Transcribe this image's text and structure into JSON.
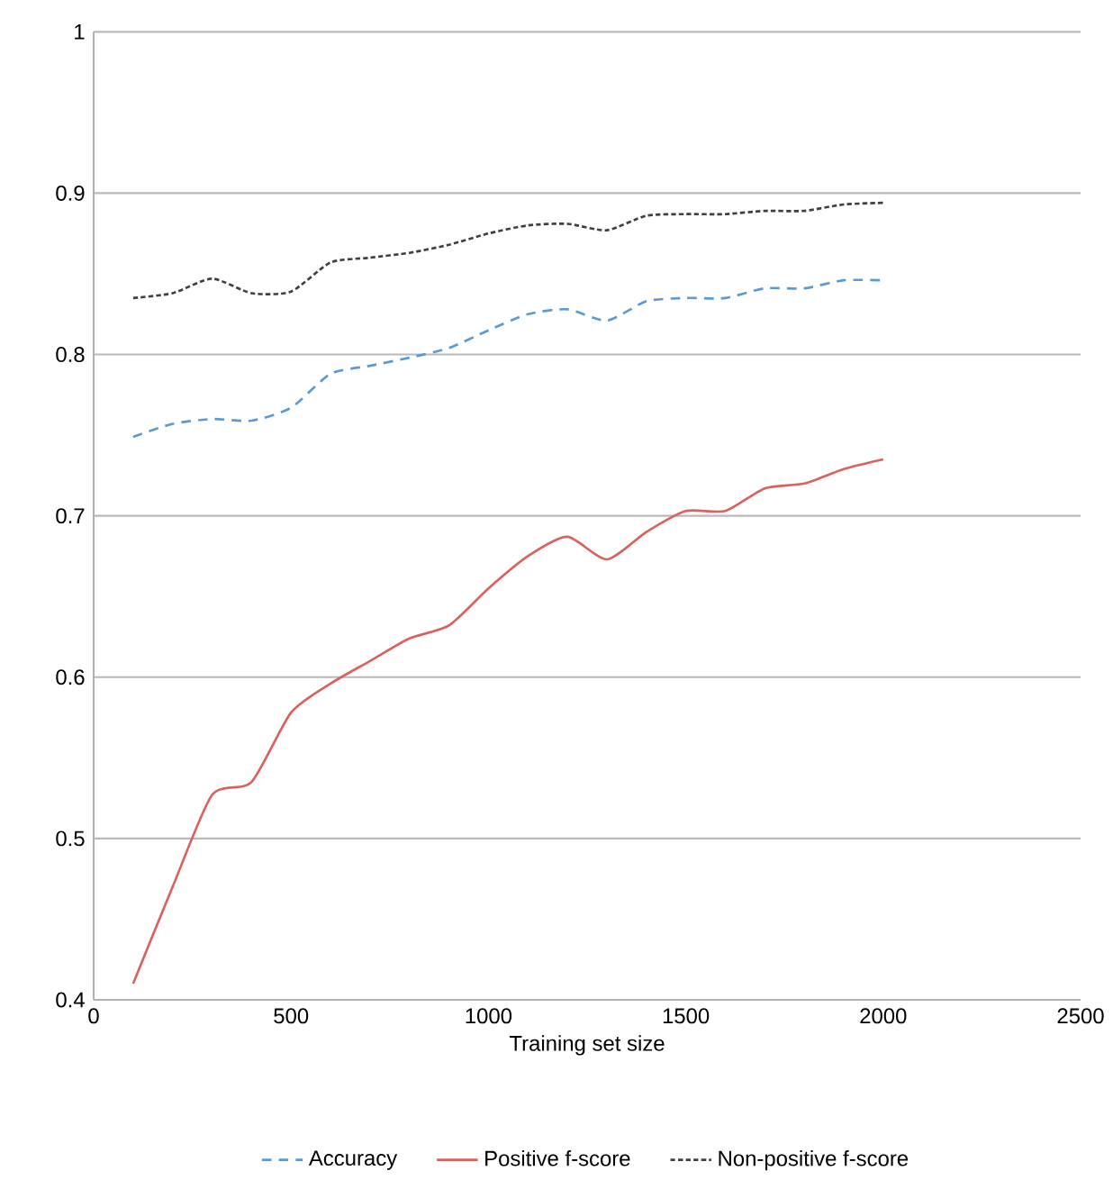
{
  "chart_data": {
    "type": "line",
    "xlabel": "Training set size",
    "x": [
      100,
      200,
      300,
      400,
      500,
      600,
      700,
      800,
      900,
      1000,
      1100,
      1200,
      1300,
      1400,
      1500,
      1600,
      1700,
      1800,
      1900,
      2000
    ],
    "series": [
      {
        "name": "Accuracy",
        "color": "#5b9bd5",
        "line_style": "dashed",
        "values": [
          0.749,
          0.757,
          0.76,
          0.759,
          0.767,
          0.788,
          0.793,
          0.798,
          0.804,
          0.815,
          0.825,
          0.828,
          0.821,
          0.833,
          0.835,
          0.835,
          0.841,
          0.841,
          0.846,
          0.846
        ]
      },
      {
        "name": "Positive f-score",
        "color": "#d9625e",
        "line_style": "solid",
        "values": [
          0.41,
          0.47,
          0.527,
          0.535,
          0.578,
          0.596,
          0.61,
          0.624,
          0.632,
          0.655,
          0.675,
          0.687,
          0.673,
          0.69,
          0.703,
          0.703,
          0.717,
          0.72,
          0.729,
          0.735
        ]
      },
      {
        "name": "Non-positive f-score",
        "color": "#404040",
        "line_style": "dotted",
        "values": [
          0.835,
          0.838,
          0.847,
          0.838,
          0.839,
          0.857,
          0.86,
          0.863,
          0.868,
          0.875,
          0.88,
          0.881,
          0.877,
          0.886,
          0.887,
          0.887,
          0.889,
          0.889,
          0.893,
          0.894
        ]
      }
    ],
    "xlim": [
      0,
      2500
    ],
    "ylim": [
      0.4,
      1
    ],
    "xticks": [
      0,
      500,
      1000,
      1500,
      2000,
      2500
    ],
    "yticks": [
      0.4,
      0.5,
      0.6,
      0.7,
      0.8,
      0.9,
      1
    ],
    "grid": "y",
    "legend": "bottom"
  }
}
